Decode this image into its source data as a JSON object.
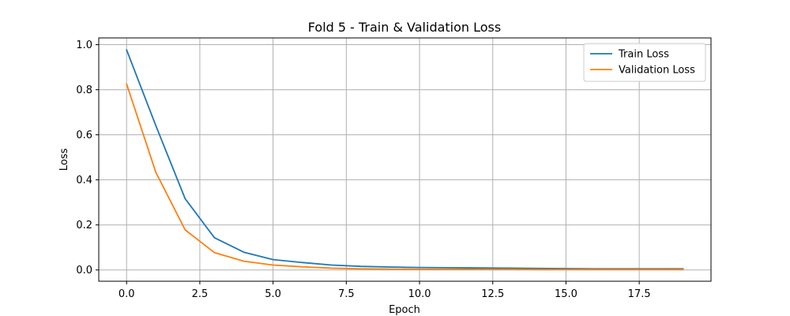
{
  "chart_data": {
    "type": "line",
    "title": "Fold 5 - Train & Validation Loss",
    "xlabel": "Epoch",
    "ylabel": "Loss",
    "xlim": [
      -0.95,
      19.95
    ],
    "ylim": [
      -0.05,
      1.03
    ],
    "xticks": [
      0.0,
      2.5,
      5.0,
      7.5,
      10.0,
      12.5,
      15.0,
      17.5
    ],
    "xtick_labels": [
      "0.0",
      "2.5",
      "5.0",
      "7.5",
      "10.0",
      "12.5",
      "15.0",
      "17.5"
    ],
    "yticks": [
      0.0,
      0.2,
      0.4,
      0.6,
      0.8,
      1.0
    ],
    "ytick_labels": [
      "0.0",
      "0.2",
      "0.4",
      "0.6",
      "0.8",
      "1.0"
    ],
    "grid": true,
    "legend_position": "top-right",
    "x": [
      0,
      1,
      2,
      3,
      4,
      5,
      6,
      7,
      8,
      9,
      10,
      11,
      12,
      13,
      14,
      15,
      16,
      17,
      18,
      19
    ],
    "series": [
      {
        "name": "Train Loss",
        "color": "#1f77b4",
        "values": [
          0.977,
          0.64,
          0.316,
          0.143,
          0.079,
          0.046,
          0.033,
          0.022,
          0.016,
          0.013,
          0.011,
          0.01,
          0.009,
          0.008,
          0.007,
          0.006,
          0.005,
          0.005,
          0.005,
          0.005
        ]
      },
      {
        "name": "Validation Loss",
        "color": "#ff7f0e",
        "values": [
          0.826,
          0.433,
          0.178,
          0.077,
          0.039,
          0.022,
          0.014,
          0.008,
          0.005,
          0.004,
          0.003,
          0.003,
          0.003,
          0.003,
          0.002,
          0.002,
          0.002,
          0.002,
          0.002,
          0.002
        ]
      }
    ]
  }
}
